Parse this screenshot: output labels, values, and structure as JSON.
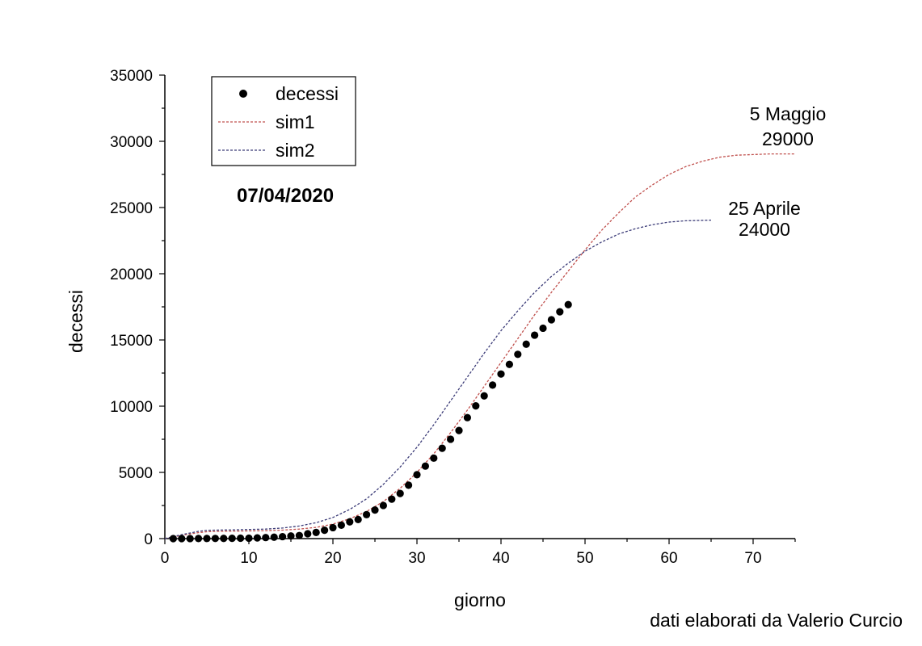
{
  "chart_data": {
    "type": "scatter",
    "xlabel": "giorno",
    "ylabel": "decessi",
    "xlim": [
      0,
      75
    ],
    "ylim": [
      0,
      35000
    ],
    "x_ticks": [
      "0",
      "10",
      "20",
      "30",
      "40",
      "50",
      "60",
      "70"
    ],
    "y_ticks": [
      "0",
      "5000",
      "10000",
      "15000",
      "20000",
      "25000",
      "30000",
      "35000"
    ],
    "grid": false,
    "legend_position": "top-left",
    "date_label": "07/04/2020",
    "credit": "dati elaborati da Valerio Curcio",
    "series": [
      {
        "name": "decessi",
        "kind": "points",
        "color": "#000000",
        "x": [
          1,
          2,
          3,
          4,
          5,
          6,
          7,
          8,
          9,
          10,
          11,
          12,
          13,
          14,
          15,
          16,
          17,
          18,
          19,
          20,
          21,
          22,
          23,
          24,
          25,
          26,
          27,
          28,
          29,
          30,
          31,
          32,
          33,
          34,
          35,
          36,
          37,
          38,
          39,
          40,
          41,
          42,
          43,
          44,
          45,
          46,
          47,
          48
        ],
        "y": [
          1,
          2,
          3,
          7,
          10,
          12,
          17,
          21,
          29,
          34,
          52,
          79,
          107,
          148,
          197,
          233,
          366,
          463,
          631,
          827,
          1016,
          1266,
          1441,
          1809,
          2158,
          2503,
          2978,
          3405,
          4032,
          4825,
          5476,
          6077,
          6820,
          7503,
          8165,
          9134,
          10023,
          10779,
          11591,
          12428,
          13155,
          13915,
          14681,
          15362,
          15887,
          16523,
          17127,
          17669
        ]
      },
      {
        "name": "sim1",
        "kind": "dashed-line",
        "color": "#c0504d",
        "x": [
          0,
          2,
          4,
          5,
          6,
          8,
          10,
          12,
          14,
          16,
          18,
          20,
          22,
          24,
          26,
          28,
          30,
          32,
          34,
          36,
          38,
          40,
          42,
          44,
          46,
          48,
          50,
          52,
          54,
          56,
          58,
          60,
          62,
          64,
          66,
          68,
          70,
          72,
          75
        ],
        "y": [
          0,
          250,
          450,
          520,
          540,
          560,
          580,
          600,
          640,
          720,
          850,
          1100,
          1500,
          2050,
          2800,
          3800,
          5000,
          6400,
          8000,
          9700,
          11500,
          13300,
          15100,
          16900,
          18600,
          20200,
          21800,
          23300,
          24600,
          25800,
          26700,
          27500,
          28100,
          28500,
          28800,
          28950,
          29000,
          29050,
          29050
        ]
      },
      {
        "name": "sim2",
        "kind": "dashed-line",
        "color": "#3c3c78",
        "x": [
          0,
          2,
          4,
          5,
          6,
          8,
          10,
          12,
          14,
          16,
          18,
          20,
          22,
          24,
          26,
          28,
          30,
          32,
          34,
          36,
          38,
          40,
          42,
          44,
          46,
          48,
          50,
          52,
          54,
          56,
          58,
          60,
          62,
          65
        ],
        "y": [
          0,
          300,
          550,
          620,
          640,
          660,
          690,
          720,
          800,
          950,
          1200,
          1600,
          2200,
          3000,
          4100,
          5400,
          6900,
          8600,
          10400,
          12200,
          14000,
          15700,
          17200,
          18600,
          19800,
          20800,
          21700,
          22400,
          23000,
          23400,
          23700,
          23900,
          24000,
          24050
        ]
      }
    ],
    "annotations": [
      {
        "line1": "5 Maggio",
        "line2": "29000"
      },
      {
        "line1": "25 Aprile",
        "line2": "24000"
      }
    ]
  }
}
